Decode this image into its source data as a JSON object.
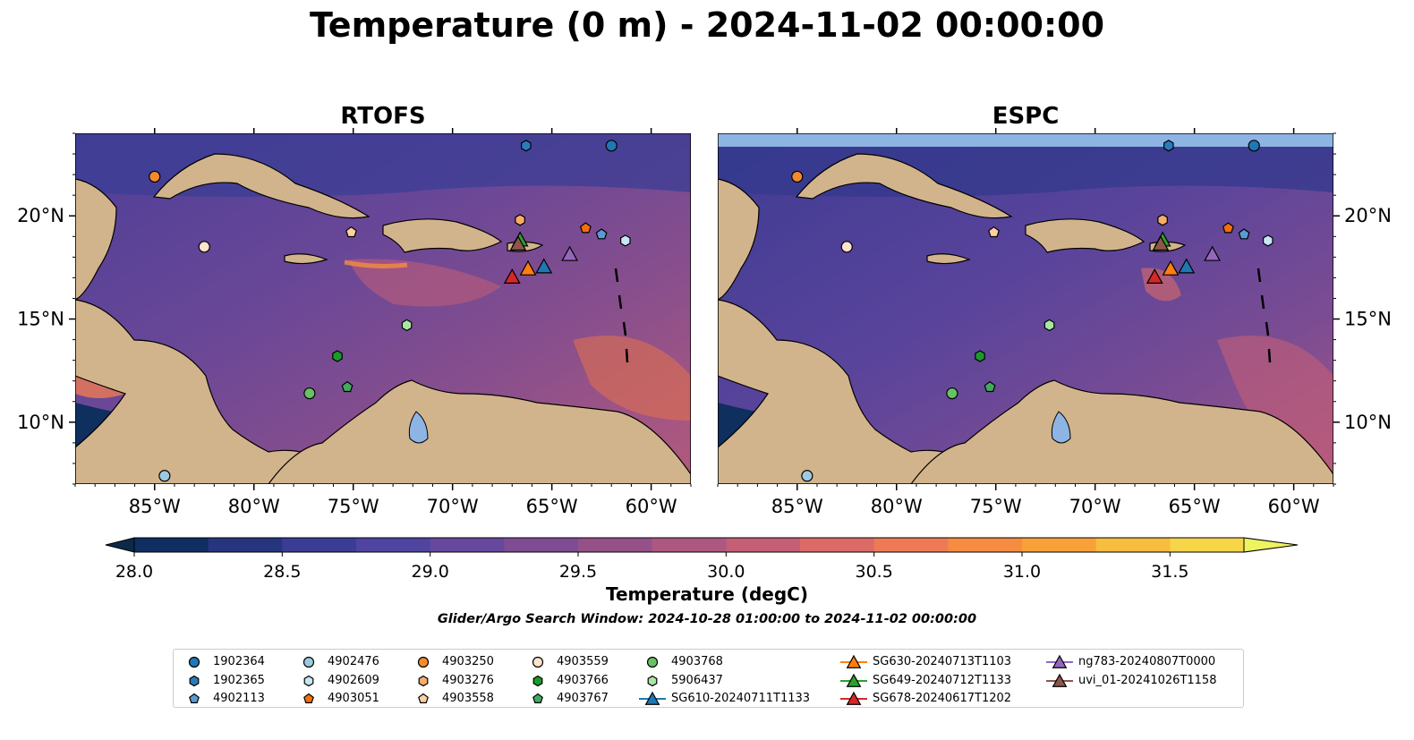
{
  "chart_data": {
    "type": "map",
    "title": "Temperature (0 m) - 2024-11-02 00:00:00",
    "subtitle": "Glider/Argo Search Window: 2024-10-28 01:00:00 to 2024-11-02 00:00:00",
    "panels": [
      {
        "name": "RTOFS"
      },
      {
        "name": "ESPC"
      }
    ],
    "lon_range": [
      -89,
      -58
    ],
    "lat_range": [
      7,
      24
    ],
    "x_ticks": [
      {
        "value": -85,
        "label": "85°W"
      },
      {
        "value": -80,
        "label": "80°W"
      },
      {
        "value": -75,
        "label": "75°W"
      },
      {
        "value": -70,
        "label": "70°W"
      },
      {
        "value": -65,
        "label": "65°W"
      },
      {
        "value": -60,
        "label": "60°W"
      }
    ],
    "y_ticks": [
      {
        "value": 20,
        "label": "20°N"
      },
      {
        "value": 15,
        "label": "15°N"
      },
      {
        "value": 10,
        "label": "10°N"
      }
    ],
    "colorbar": {
      "label": "Temperature (degC)",
      "range": [
        28.0,
        31.5
      ],
      "ticks": [
        "28.0",
        "28.5",
        "29.0",
        "29.5",
        "30.0",
        "30.5",
        "31.0",
        "31.5"
      ],
      "colors": [
        "#0b2a4a",
        "#102e62",
        "#27357f",
        "#3b3d94",
        "#4f44a0",
        "#66489c",
        "#7e4c93",
        "#945188",
        "#ad5880",
        "#c45f76",
        "#dc6a66",
        "#ee7a55",
        "#f68c42",
        "#f8a13b",
        "#f7bd3e",
        "#f6d548",
        "#eef360"
      ]
    },
    "argo_floats": [
      {
        "id": "1902364",
        "lon": -62.0,
        "lat": 23.4,
        "marker": "circle",
        "color": "#1f77b4"
      },
      {
        "id": "1902365",
        "lon": -66.3,
        "lat": 23.4,
        "marker": "hexagon",
        "color": "#2b7bba"
      },
      {
        "id": "4902113",
        "lon": -62.5,
        "lat": 19.1,
        "marker": "pentagon",
        "color": "#5b9bd5"
      },
      {
        "id": "4902476",
        "lon": -84.5,
        "lat": 7.4,
        "marker": "circle",
        "color": "#9ecae1"
      },
      {
        "id": "4902609",
        "lon": -61.3,
        "lat": 18.8,
        "marker": "hexagon",
        "color": "#c6e5f5"
      },
      {
        "id": "4903051",
        "lon": -63.3,
        "lat": 19.4,
        "marker": "pentagon",
        "color": "#f26f0b"
      },
      {
        "id": "4903250",
        "lon": -85.0,
        "lat": 21.9,
        "marker": "circle",
        "color": "#f38b2e"
      },
      {
        "id": "4903276",
        "lon": -66.6,
        "lat": 19.8,
        "marker": "hexagon",
        "color": "#f7ad67"
      },
      {
        "id": "4903558",
        "lon": -75.1,
        "lat": 19.2,
        "marker": "pentagon",
        "color": "#fdd0a2"
      },
      {
        "id": "4903559",
        "lon": -82.5,
        "lat": 18.5,
        "marker": "circle",
        "color": "#fde2cc"
      },
      {
        "id": "4903766",
        "lon": -75.8,
        "lat": 13.2,
        "marker": "hexagon",
        "color": "#1a9a2a"
      },
      {
        "id": "4903767",
        "lon": -75.3,
        "lat": 11.7,
        "marker": "pentagon",
        "color": "#41ab5d"
      },
      {
        "id": "4903768",
        "lon": -77.2,
        "lat": 11.4,
        "marker": "circle",
        "color": "#66c264"
      },
      {
        "id": "5906437",
        "lon": -72.3,
        "lat": 14.7,
        "marker": "hexagon",
        "color": "#a8e6a1"
      }
    ],
    "gliders": [
      {
        "id": "SG610-20240711T1133",
        "lon": -65.4,
        "lat": 17.5,
        "color": "#1f77b4"
      },
      {
        "id": "SG630-20240713T1103",
        "lon": -66.2,
        "lat": 17.4,
        "color": "#ff7f0e"
      },
      {
        "id": "SG649-20240712T1133",
        "lon": -66.6,
        "lat": 18.8,
        "color": "#2ca02c"
      },
      {
        "id": "SG678-20240617T1202",
        "lon": -67.0,
        "lat": 17.0,
        "color": "#d62728"
      },
      {
        "id": "ng783-20240807T0000",
        "lon": -64.1,
        "lat": 18.1,
        "color": "#9467bd"
      },
      {
        "id": "uvi_01-20241026T1158",
        "lon": -66.7,
        "lat": 18.6,
        "color": "#8c564b"
      }
    ],
    "land_color": "#d2b48c",
    "lake_color": "#8eb4e3",
    "legend_location": "bottom-center"
  }
}
